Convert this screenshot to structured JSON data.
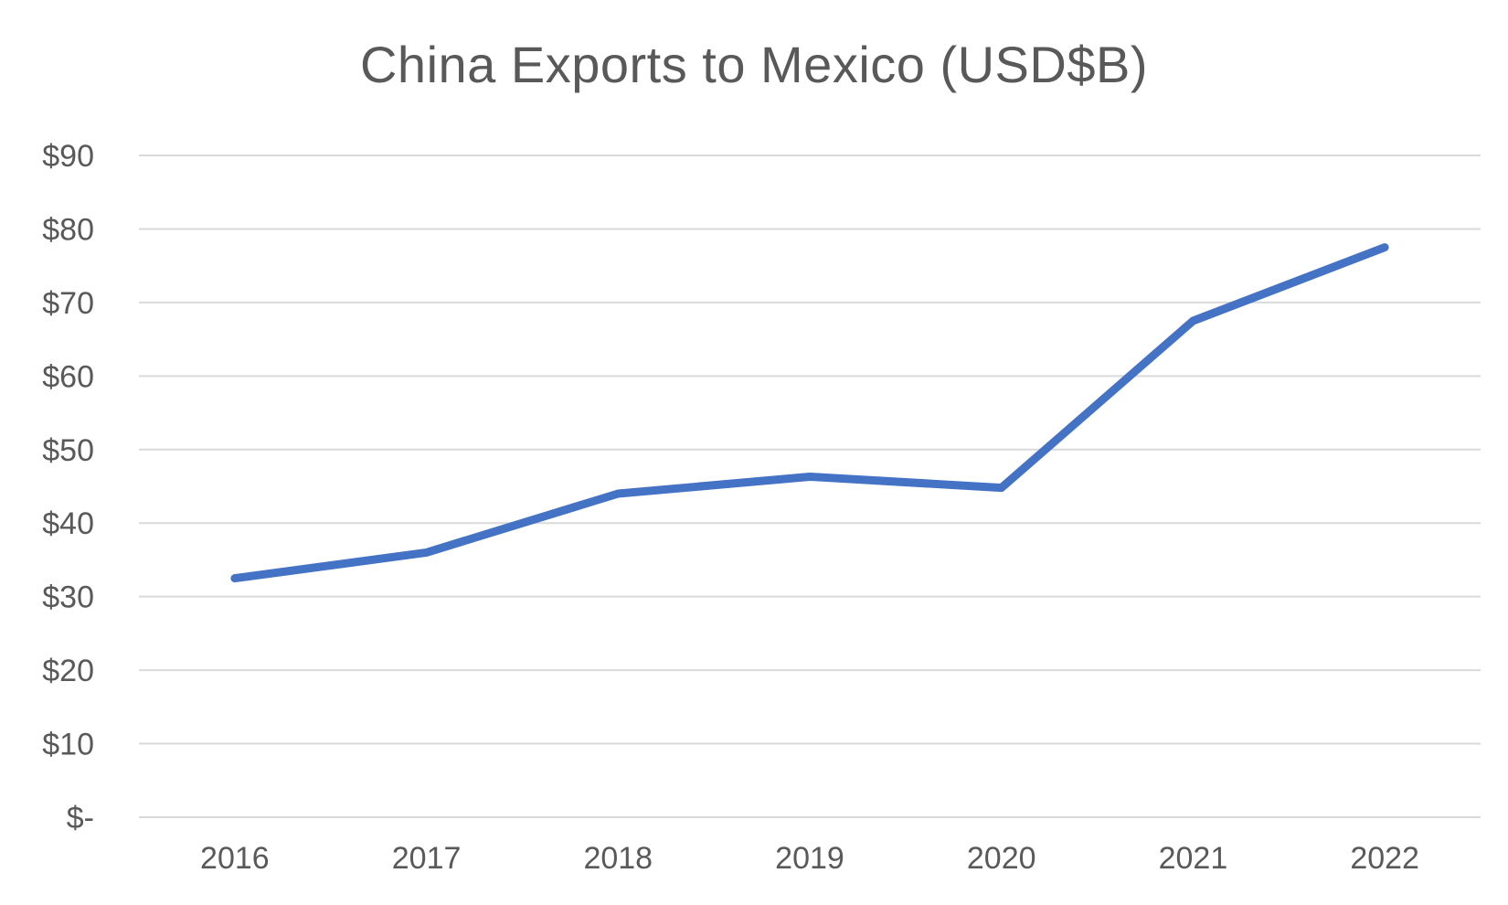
{
  "chart_data": {
    "type": "line",
    "title": "China Exports to Mexico (USD$B)",
    "xlabel": "",
    "ylabel": "",
    "categories": [
      "2016",
      "2017",
      "2018",
      "2019",
      "2020",
      "2021",
      "2022"
    ],
    "series": [
      {
        "values": [
          32.5,
          36,
          44,
          46.3,
          44.8,
          67.5,
          77.5
        ],
        "color": "#4472c4"
      }
    ],
    "ylim": [
      0,
      90
    ],
    "yticks": [
      {
        "value": 90,
        "label": "$90"
      },
      {
        "value": 80,
        "label": "$80"
      },
      {
        "value": 70,
        "label": "$70"
      },
      {
        "value": 60,
        "label": "$60"
      },
      {
        "value": 50,
        "label": "$50"
      },
      {
        "value": 40,
        "label": "$40"
      },
      {
        "value": 30,
        "label": "$30"
      },
      {
        "value": 20,
        "label": "$20"
      },
      {
        "value": 10,
        "label": "$10"
      },
      {
        "value": 0,
        "label": "$-"
      }
    ],
    "grid": true,
    "legend": "none",
    "colors": {
      "line": "#4472c4",
      "grid": "#d9d9d9",
      "text": "#595959"
    }
  }
}
